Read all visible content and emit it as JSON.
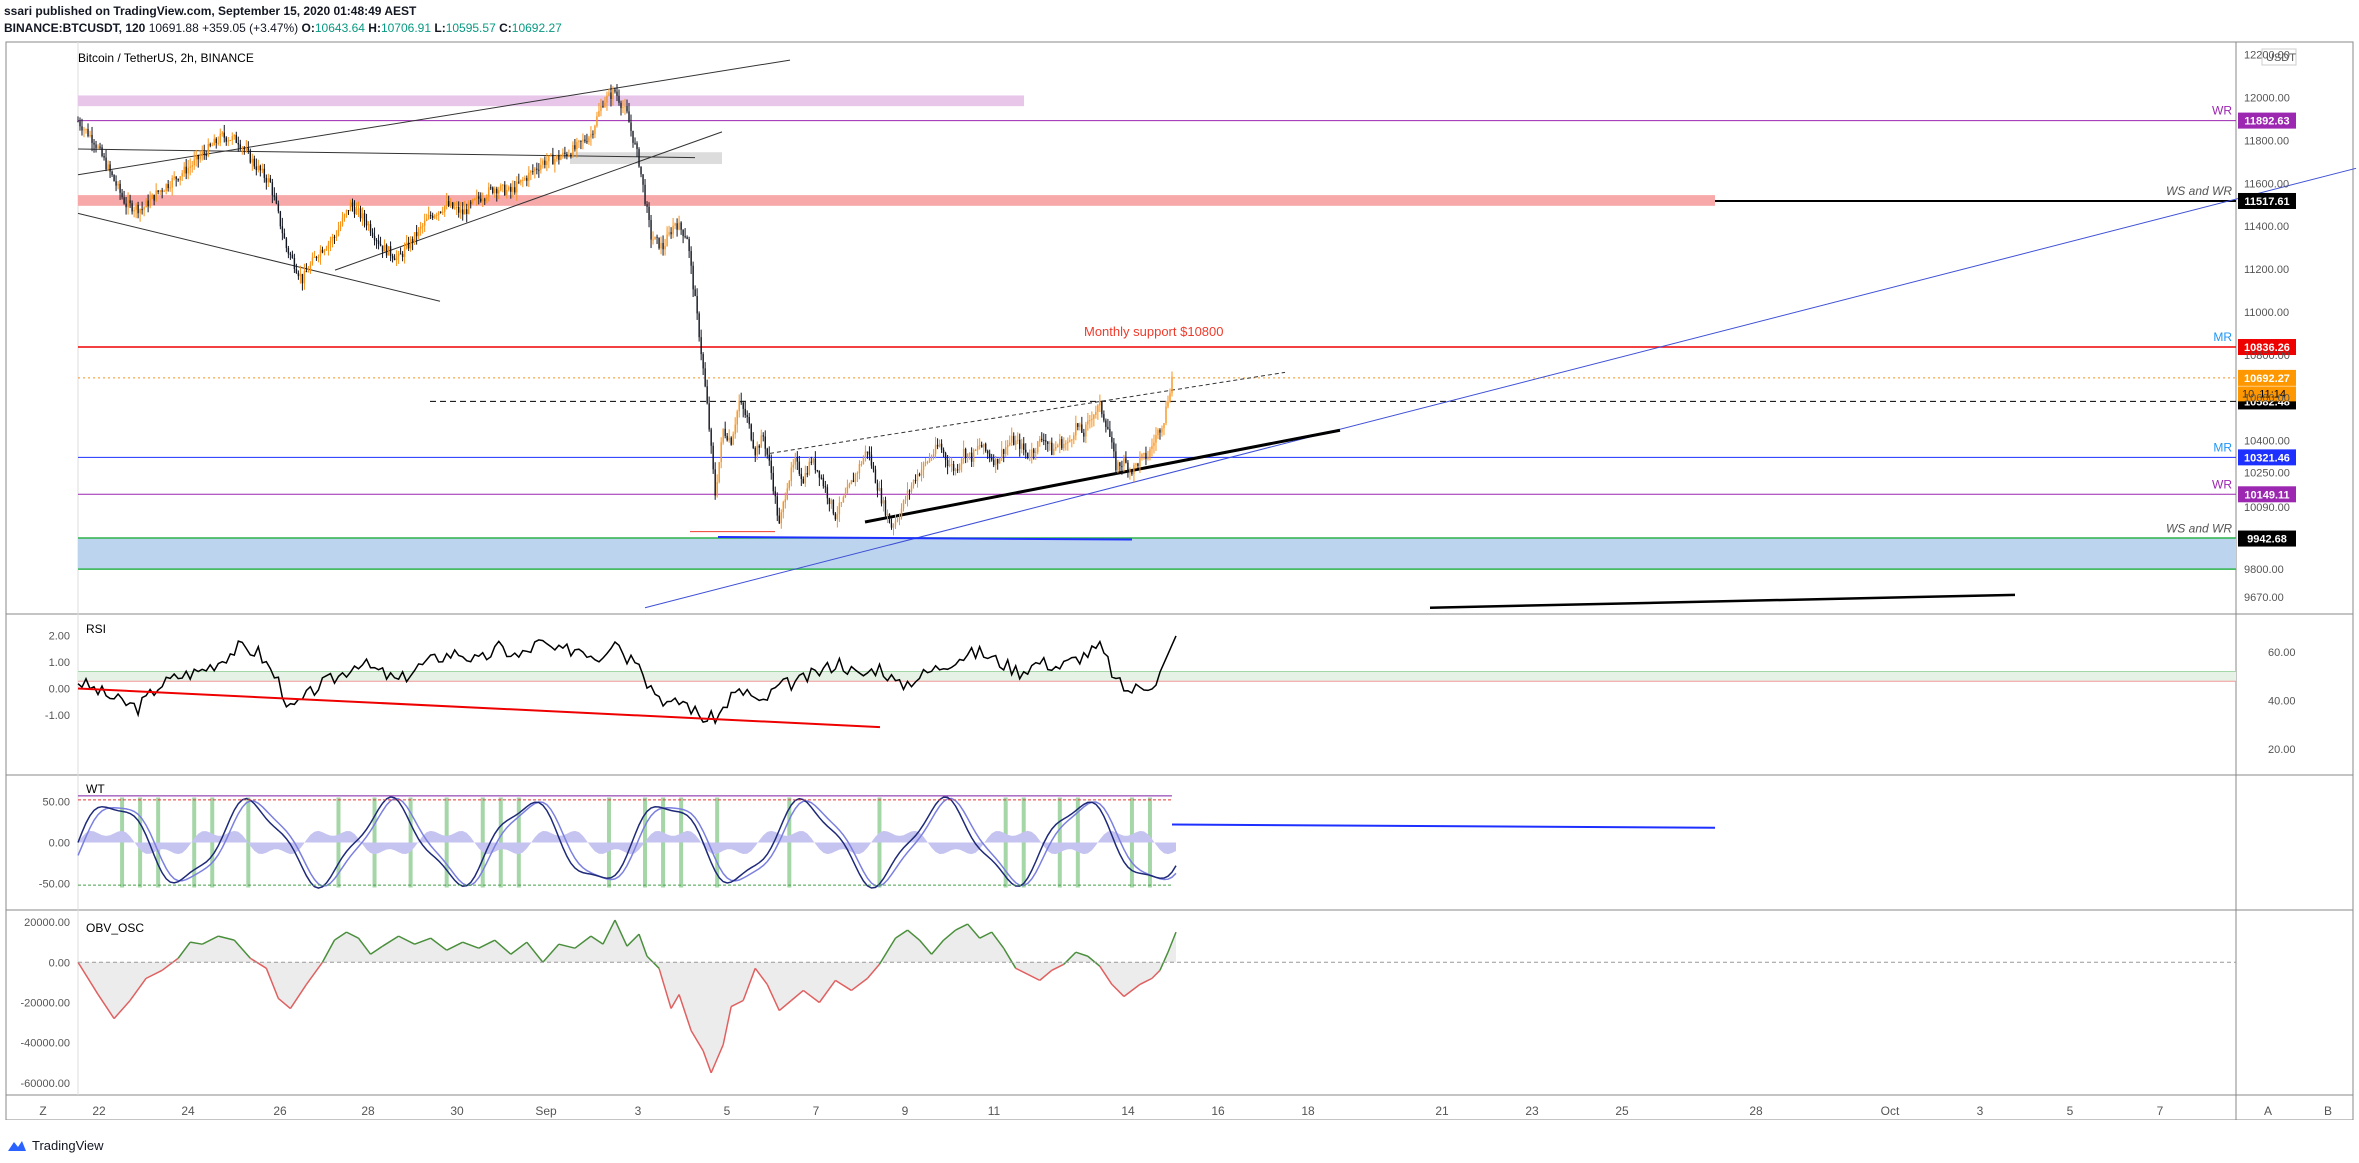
{
  "header": {
    "author_line": "ssari published on TradingView.com, September 15, 2020 01:48:49 AEST",
    "symbol": "BINANCE:BTCUSDT, 120",
    "last": "10691.88",
    "change": "+359.05 (+3.47%)",
    "o_label": "O:",
    "o": "10643.64",
    "h_label": "H:",
    "h": "10706.91",
    "l_label": "L:",
    "l": "10595.57",
    "c_label": "C:",
    "c": "10692.27"
  },
  "footer": {
    "brand": "TradingView",
    "btn_a": "A",
    "btn_b": "B",
    "zoom_btn": "Z"
  },
  "colors": {
    "up": "#f7931a",
    "down": "#131722",
    "red": "#ef0000",
    "blue": "#1e30ff",
    "purple": "#9c27b0",
    "green": "#4caf50",
    "rsi": "#000000",
    "wt1": "#1e2a78",
    "wt2": "#7b7fe0",
    "obv_up": "#4a8f3c",
    "obv_down": "#e06060"
  },
  "chart_data": [
    {
      "type": "candlestick",
      "title": "Bitcoin / TetherUS, 2h, BINANCE",
      "currency_label": "USDT",
      "ylim": [
        9600,
        12250
      ],
      "y_ticks": [
        "12200.00",
        "12000.00",
        "11800.00",
        "11600.00",
        "11400.00",
        "11200.00",
        "11000.00",
        "10800.00",
        "10600.00",
        "10400.00",
        "10250.00",
        "10090.00",
        "9800.00",
        "9670.00"
      ],
      "y_tick_values": [
        12200,
        12000,
        11800,
        11600,
        11400,
        11200,
        11000,
        10800,
        10600,
        10400,
        10250,
        10090,
        9800,
        9670
      ],
      "x_labels": [
        "22",
        "24",
        "26",
        "28",
        "30",
        "Sep",
        "3",
        "5",
        "7",
        "9",
        "11",
        "14",
        "16",
        "18",
        "21",
        "23",
        "25",
        "28",
        "Oct",
        "3",
        "5",
        "7"
      ],
      "close_path": [
        [
          0,
          11890
        ],
        [
          8,
          11800
        ],
        [
          16,
          11650
        ],
        [
          24,
          11500
        ],
        [
          32,
          11480
        ],
        [
          40,
          11560
        ],
        [
          48,
          11620
        ],
        [
          56,
          11680
        ],
        [
          64,
          11750
        ],
        [
          72,
          11820
        ],
        [
          80,
          11800
        ],
        [
          88,
          11690
        ],
        [
          96,
          11600
        ],
        [
          104,
          11300
        ],
        [
          112,
          11150
        ],
        [
          120,
          11280
        ],
        [
          128,
          11350
        ],
        [
          136,
          11500
        ],
        [
          144,
          11420
        ],
        [
          152,
          11300
        ],
        [
          160,
          11250
        ],
        [
          168,
          11350
        ],
        [
          176,
          11450
        ],
        [
          184,
          11500
        ],
        [
          192,
          11460
        ],
        [
          200,
          11530
        ],
        [
          208,
          11580
        ],
        [
          216,
          11560
        ],
        [
          224,
          11630
        ],
        [
          232,
          11700
        ],
        [
          240,
          11720
        ],
        [
          248,
          11760
        ],
        [
          256,
          11830
        ],
        [
          262,
          11980
        ],
        [
          268,
          12030
        ],
        [
          274,
          11920
        ],
        [
          280,
          11700
        ],
        [
          286,
          11350
        ],
        [
          292,
          11300
        ],
        [
          298,
          11420
        ],
        [
          304,
          11350
        ],
        [
          310,
          10900
        ],
        [
          314,
          10560
        ],
        [
          318,
          10150
        ],
        [
          322,
          10450
        ],
        [
          326,
          10400
        ],
        [
          330,
          10580
        ],
        [
          334,
          10500
        ],
        [
          338,
          10350
        ],
        [
          342,
          10420
        ],
        [
          346,
          10250
        ],
        [
          350,
          10000
        ],
        [
          354,
          10200
        ],
        [
          358,
          10300
        ],
        [
          362,
          10220
        ],
        [
          366,
          10310
        ],
        [
          370,
          10250
        ],
        [
          374,
          10150
        ],
        [
          378,
          10050
        ],
        [
          382,
          10120
        ],
        [
          386,
          10200
        ],
        [
          390,
          10280
        ],
        [
          394,
          10360
        ],
        [
          398,
          10220
        ],
        [
          402,
          10100
        ],
        [
          406,
          10000
        ],
        [
          410,
          10060
        ],
        [
          414,
          10150
        ],
        [
          418,
          10230
        ],
        [
          422,
          10280
        ],
        [
          426,
          10330
        ],
        [
          430,
          10380
        ],
        [
          434,
          10300
        ],
        [
          438,
          10260
        ],
        [
          442,
          10350
        ],
        [
          446,
          10320
        ],
        [
          450,
          10380
        ],
        [
          454,
          10340
        ],
        [
          458,
          10300
        ],
        [
          462,
          10360
        ],
        [
          466,
          10400
        ],
        [
          470,
          10380
        ],
        [
          474,
          10330
        ],
        [
          478,
          10370
        ],
        [
          482,
          10420
        ],
        [
          486,
          10350
        ],
        [
          490,
          10390
        ],
        [
          494,
          10380
        ],
        [
          498,
          10470
        ],
        [
          502,
          10430
        ],
        [
          506,
          10520
        ],
        [
          510,
          10560
        ],
        [
          514,
          10460
        ],
        [
          518,
          10280
        ],
        [
          522,
          10300
        ],
        [
          526,
          10260
        ],
        [
          530,
          10310
        ],
        [
          534,
          10330
        ],
        [
          538,
          10420
        ],
        [
          542,
          10500
        ],
        [
          546,
          10692
        ]
      ],
      "levels": [
        {
          "label": "WR",
          "price": 11892.63,
          "price_label": "11892.63",
          "color": "#9c27b0"
        },
        {
          "label": "WS and WR",
          "price": 11517.61,
          "price_label": "11517.61",
          "color": "#000000"
        },
        {
          "label": "MR",
          "price": 10836.26,
          "price_label": "10836.26",
          "color": "#ef0000"
        },
        {
          "label": "",
          "price": 10692.27,
          "price_label": "10692.27",
          "color": "#f7931a"
        },
        {
          "label": "",
          "price": 10582.48,
          "price_label": "10582.48",
          "color": "#000000"
        },
        {
          "label": "MR",
          "price": 10321.46,
          "price_label": "10321.46",
          "color": "#1e30ff"
        },
        {
          "label": "WR",
          "price": 10149.11,
          "price_label": "10149.11",
          "color": "#9c27b0"
        },
        {
          "label": "WS and WR",
          "price": 9942.68,
          "price_label": "9942.68",
          "color": "#000000"
        }
      ],
      "countdown_label": "11:14",
      "partial_label": "10",
      "annotation": "Monthly support $10800"
    },
    {
      "type": "line",
      "title": "RSI",
      "left_ticks": [
        "2.00",
        "1.00",
        "0.00",
        "-1.00"
      ],
      "left_tick_values": [
        2,
        1,
        0,
        -1
      ],
      "right_ticks": [
        "60.00",
        "40.00",
        "20.00"
      ],
      "right_tick_values": [
        60,
        40,
        20
      ],
      "ylim": [
        10,
        75
      ],
      "values": [
        [
          0,
          48
        ],
        [
          10,
          44
        ],
        [
          20,
          40
        ],
        [
          30,
          37
        ],
        [
          40,
          46
        ],
        [
          50,
          50
        ],
        [
          60,
          52
        ],
        [
          70,
          56
        ],
        [
          80,
          62
        ],
        [
          90,
          60
        ],
        [
          100,
          48
        ],
        [
          106,
          36
        ],
        [
          112,
          40
        ],
        [
          120,
          46
        ],
        [
          130,
          50
        ],
        [
          140,
          56
        ],
        [
          150,
          52
        ],
        [
          160,
          48
        ],
        [
          170,
          54
        ],
        [
          180,
          58
        ],
        [
          190,
          60
        ],
        [
          200,
          56
        ],
        [
          210,
          62
        ],
        [
          220,
          58
        ],
        [
          230,
          64
        ],
        [
          240,
          60
        ],
        [
          250,
          62
        ],
        [
          260,
          58
        ],
        [
          268,
          66
        ],
        [
          274,
          58
        ],
        [
          280,
          58
        ],
        [
          284,
          48
        ],
        [
          290,
          42
        ],
        [
          296,
          38
        ],
        [
          302,
          40
        ],
        [
          310,
          34
        ],
        [
          314,
          32
        ],
        [
          320,
          34
        ],
        [
          326,
          42
        ],
        [
          334,
          44
        ],
        [
          340,
          38
        ],
        [
          350,
          46
        ],
        [
          360,
          48
        ],
        [
          370,
          52
        ],
        [
          380,
          56
        ],
        [
          390,
          50
        ],
        [
          400,
          54
        ],
        [
          410,
          46
        ],
        [
          420,
          50
        ],
        [
          430,
          54
        ],
        [
          440,
          58
        ],
        [
          450,
          60
        ],
        [
          460,
          56
        ],
        [
          470,
          52
        ],
        [
          480,
          56
        ],
        [
          490,
          54
        ],
        [
          500,
          58
        ],
        [
          510,
          62
        ],
        [
          514,
          56
        ],
        [
          518,
          48
        ],
        [
          524,
          44
        ],
        [
          532,
          46
        ],
        [
          538,
          48
        ],
        [
          544,
          58
        ],
        [
          548,
          66
        ]
      ]
    },
    {
      "type": "line",
      "title": "WT",
      "left_ticks": [
        "50.00",
        "0.00",
        "-50.00"
      ],
      "left_tick_values": [
        50,
        0,
        -50
      ],
      "ylim": [
        -80,
        80
      ]
    },
    {
      "type": "area",
      "title": "OBV_OSC",
      "left_ticks": [
        "20000.00",
        "0.00",
        "-20000.00",
        "-40000.00",
        "-60000.00"
      ],
      "left_tick_values": [
        20000,
        0,
        -20000,
        -40000,
        -60000
      ],
      "values": [
        [
          0,
          0
        ],
        [
          10,
          -16000
        ],
        [
          18,
          -28000
        ],
        [
          26,
          -19000
        ],
        [
          34,
          -8000
        ],
        [
          42,
          -4000
        ],
        [
          50,
          2000
        ],
        [
          56,
          10000
        ],
        [
          62,
          9000
        ],
        [
          70,
          13000
        ],
        [
          78,
          11000
        ],
        [
          86,
          2000
        ],
        [
          94,
          -3000
        ],
        [
          100,
          -18000
        ],
        [
          106,
          -23000
        ],
        [
          114,
          -11000
        ],
        [
          122,
          0
        ],
        [
          128,
          11000
        ],
        [
          134,
          15000
        ],
        [
          140,
          12000
        ],
        [
          146,
          4000
        ],
        [
          152,
          8000
        ],
        [
          160,
          13000
        ],
        [
          168,
          9000
        ],
        [
          176,
          12000
        ],
        [
          184,
          6000
        ],
        [
          192,
          10000
        ],
        [
          200,
          7000
        ],
        [
          208,
          11000
        ],
        [
          216,
          4000
        ],
        [
          224,
          10000
        ],
        [
          232,
          0
        ],
        [
          240,
          9000
        ],
        [
          248,
          7000
        ],
        [
          256,
          13000
        ],
        [
          262,
          9000
        ],
        [
          268,
          21000
        ],
        [
          274,
          8000
        ],
        [
          280,
          14000
        ],
        [
          284,
          3000
        ],
        [
          290,
          -3000
        ],
        [
          296,
          -23000
        ],
        [
          300,
          -16000
        ],
        [
          306,
          -34000
        ],
        [
          312,
          -44000
        ],
        [
          316,
          -55000
        ],
        [
          322,
          -41000
        ],
        [
          326,
          -22000
        ],
        [
          332,
          -19000
        ],
        [
          338,
          -3000
        ],
        [
          344,
          -11000
        ],
        [
          350,
          -24000
        ],
        [
          356,
          -19000
        ],
        [
          362,
          -14000
        ],
        [
          370,
          -20000
        ],
        [
          378,
          -9000
        ],
        [
          386,
          -14000
        ],
        [
          394,
          -8000
        ],
        [
          400,
          -1000
        ],
        [
          408,
          12000
        ],
        [
          414,
          16000
        ],
        [
          420,
          11000
        ],
        [
          426,
          4000
        ],
        [
          432,
          11000
        ],
        [
          438,
          16000
        ],
        [
          444,
          19000
        ],
        [
          450,
          12000
        ],
        [
          456,
          15000
        ],
        [
          462,
          7000
        ],
        [
          468,
          -3000
        ],
        [
          474,
          -6000
        ],
        [
          480,
          -9000
        ],
        [
          486,
          -4000
        ],
        [
          492,
          -1000
        ],
        [
          498,
          5000
        ],
        [
          504,
          3000
        ],
        [
          510,
          -2000
        ],
        [
          516,
          -11000
        ],
        [
          522,
          -17000
        ],
        [
          530,
          -11000
        ],
        [
          536,
          -8000
        ],
        [
          540,
          -4000
        ],
        [
          544,
          5000
        ],
        [
          548,
          15000
        ]
      ]
    }
  ]
}
